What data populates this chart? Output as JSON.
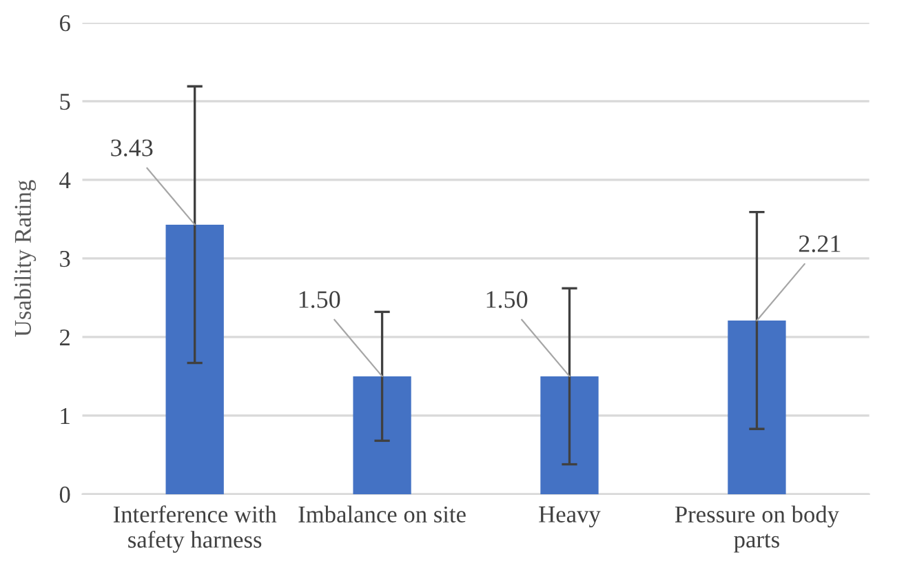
{
  "chart_data": {
    "type": "bar",
    "ylabel": "Usability Rating",
    "categories": [
      "Interference with\nsafety harness",
      "Imbalance on site",
      "Heavy",
      "Pressure on body\nparts"
    ],
    "values": [
      3.43,
      1.5,
      1.5,
      2.21
    ],
    "value_labels": [
      "3.43",
      "1.50",
      "1.50",
      "2.21"
    ],
    "errors": [
      1.76,
      0.82,
      1.12,
      1.38
    ],
    "color": "#4472c4",
    "ylim": [
      0,
      6
    ],
    "yticks": [
      0,
      1,
      2,
      3,
      4,
      5,
      6
    ],
    "grid": "y"
  }
}
